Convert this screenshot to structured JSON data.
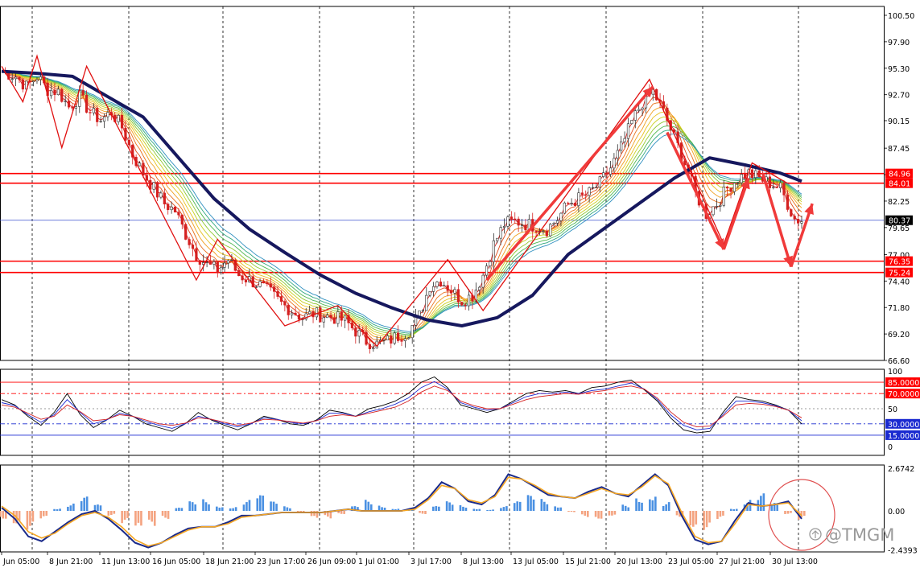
{
  "watermark": "@TMGM",
  "colors": {
    "bull": "#2e2e2e",
    "bear": "#d42020",
    "ema_main": "#16185e",
    "hline": "#ff0000",
    "current_line": "#3a4fcf",
    "grid": "#000000",
    "hist_pos": "#4a90e2",
    "hist_neg": "#f4a380",
    "macd_line": "#1a2a8a",
    "signal_line": "#f5a623",
    "stoch_k": "#000000",
    "stoch_d": "#1a2ad0",
    "stoch_s": "#d42020"
  },
  "chart_data": [
    {
      "type": "candlestick",
      "title": "",
      "y_ticks": [
        "100.50",
        "97.90",
        "95.30",
        "92.70",
        "90.15",
        "87.45",
        "84.85",
        "82.25",
        "79.65",
        "77.00",
        "74.40",
        "71.80",
        "69.20",
        "66.60"
      ],
      "ylim": [
        66.6,
        100.5
      ],
      "price_labels": [
        {
          "label": "84.96",
          "value": 84.96,
          "color": "#ff0000"
        },
        {
          "label": "84.01",
          "value": 84.01,
          "color": "#ff0000"
        },
        {
          "label": "80.37",
          "value": 80.37,
          "color": "#000000"
        },
        {
          "label": "76.35",
          "value": 76.35,
          "color": "#ff0000"
        },
        {
          "label": "75.24",
          "value": 75.24,
          "color": "#ff0000"
        }
      ],
      "close_path": [
        [
          0,
          95.0
        ],
        [
          4,
          94.5
        ],
        [
          7,
          93.5
        ],
        [
          10,
          94.5
        ],
        [
          13,
          93.2
        ],
        [
          16,
          93.0
        ],
        [
          19,
          91.5
        ],
        [
          22,
          92.5
        ],
        [
          25,
          91.0
        ],
        [
          28,
          90.2
        ],
        [
          31,
          91.0
        ],
        [
          34,
          89.5
        ],
        [
          37,
          86.8
        ],
        [
          40,
          85.0
        ],
        [
          43,
          83.5
        ],
        [
          46,
          82.0
        ],
        [
          49,
          81.3
        ],
        [
          52,
          79.0
        ],
        [
          55,
          77.0
        ],
        [
          58,
          76.0
        ],
        [
          61,
          75.5
        ],
        [
          64,
          76.5
        ],
        [
          67,
          75.0
        ],
        [
          70,
          74.5
        ],
        [
          73,
          74.0
        ],
        [
          76,
          73.2
        ],
        [
          79,
          72.2
        ],
        [
          82,
          71.5
        ],
        [
          85,
          70.8
        ],
        [
          88,
          71.2
        ],
        [
          91,
          71.0
        ],
        [
          94,
          70.8
        ],
        [
          97,
          70.5
        ],
        [
          100,
          69.5
        ],
        [
          103,
          68.5
        ],
        [
          106,
          68.2
        ],
        [
          109,
          68.5
        ],
        [
          112,
          69.0
        ],
        [
          115,
          69.5
        ],
        [
          118,
          71.0
        ],
        [
          121,
          74.0
        ],
        [
          124,
          74.5
        ],
        [
          127,
          73.5
        ],
        [
          130,
          72.5
        ],
        [
          133,
          73.0
        ],
        [
          136,
          75.0
        ],
        [
          139,
          78.0
        ],
        [
          142,
          80.0
        ],
        [
          145,
          80.3
        ],
        [
          148,
          80.0
        ],
        [
          151,
          79.8
        ],
        [
          154,
          79.5
        ],
        [
          157,
          80.5
        ],
        [
          160,
          82.0
        ],
        [
          163,
          82.5
        ],
        [
          166,
          83.0
        ],
        [
          169,
          84.0
        ],
        [
          172,
          85.5
        ],
        [
          175,
          87.5
        ],
        [
          178,
          90.0
        ],
        [
          181,
          92.0
        ],
        [
          184,
          93.0
        ],
        [
          187,
          91.0
        ],
        [
          190,
          88.5
        ],
        [
          193,
          86.0
        ],
        [
          196,
          83.0
        ],
        [
          199,
          81.0
        ],
        [
          202,
          82.0
        ],
        [
          205,
          83.5
        ],
        [
          208,
          84.5
        ],
        [
          211,
          85.0
        ],
        [
          214,
          84.5
        ],
        [
          217,
          84.0
        ],
        [
          220,
          83.5
        ],
        [
          222,
          82.0
        ],
        [
          224,
          80.5
        ],
        [
          226,
          80.37
        ]
      ],
      "ema_path": [
        [
          0,
          95.0
        ],
        [
          10,
          94.8
        ],
        [
          20,
          94.5
        ],
        [
          30,
          92.5
        ],
        [
          40,
          90.5
        ],
        [
          50,
          86.5
        ],
        [
          60,
          82.5
        ],
        [
          70,
          79.5
        ],
        [
          80,
          77.2
        ],
        [
          90,
          75.0
        ],
        [
          100,
          73.2
        ],
        [
          110,
          71.8
        ],
        [
          120,
          70.6
        ],
        [
          130,
          70.0
        ],
        [
          140,
          70.8
        ],
        [
          150,
          73.0
        ],
        [
          160,
          77.0
        ],
        [
          170,
          79.5
        ],
        [
          180,
          82.0
        ],
        [
          190,
          84.5
        ],
        [
          200,
          86.5
        ],
        [
          210,
          85.8
        ],
        [
          220,
          85.0
        ],
        [
          226,
          84.2
        ]
      ],
      "zigzag": [
        [
          0,
          95.5
        ],
        [
          6,
          92.0
        ],
        [
          10,
          96.5
        ],
        [
          17,
          87.5
        ],
        [
          24,
          95.5
        ],
        [
          55,
          74.5
        ],
        [
          61,
          78.5
        ],
        [
          80,
          70.0
        ],
        [
          95,
          72.0
        ],
        [
          106,
          68.0
        ],
        [
          126,
          76.5
        ],
        [
          136,
          71.5
        ],
        [
          183,
          94.2
        ],
        [
          204,
          78.0
        ],
        [
          212,
          86.0
        ],
        [
          222,
          84.0
        ]
      ],
      "arrows": [
        {
          "from": [
            137,
            74.5
          ],
          "to": [
            184,
            93.5
          ]
        },
        {
          "from": [
            188,
            89.0
          ],
          "to": [
            204,
            77.5
          ]
        },
        {
          "from": [
            204,
            77.5
          ],
          "to": [
            211,
            84.5
          ]
        },
        {
          "from": [
            215,
            85.0
          ],
          "to": [
            223,
            75.8
          ]
        },
        {
          "from": [
            223,
            75.8
          ],
          "to": [
            229,
            82.0
          ]
        }
      ]
    },
    {
      "type": "line",
      "title": "",
      "levels": [
        {
          "label": "85.0000",
          "value": 85,
          "color": "#ff0000"
        },
        {
          "label": "70.0000",
          "value": 70,
          "color": "#ff0000"
        },
        {
          "label": "30.0000",
          "value": 30,
          "color": "#1a2ad0"
        },
        {
          "label": "15.0000",
          "value": 15,
          "color": "#1a2ad0"
        }
      ],
      "y_ticks": [
        "100",
        "50",
        "0"
      ],
      "ylim": [
        0,
        100
      ],
      "series": [
        {
          "values": [
            62,
            55,
            40,
            28,
            45,
            70,
            42,
            25,
            35,
            48,
            40,
            30,
            25,
            20,
            30,
            45,
            35,
            28,
            22,
            30,
            40,
            36,
            30,
            28,
            35,
            48,
            45,
            40,
            50,
            54,
            60,
            70,
            85,
            92,
            78,
            55,
            50,
            45,
            50,
            60,
            70,
            74,
            72,
            74,
            70,
            78,
            80,
            85,
            88,
            75,
            60,
            38,
            22,
            18,
            20,
            45,
            66,
            62,
            60,
            55,
            48,
            30
          ]
        },
        {
          "values": [
            58,
            54,
            42,
            32,
            42,
            62,
            45,
            30,
            35,
            44,
            40,
            33,
            28,
            24,
            30,
            40,
            36,
            30,
            26,
            30,
            38,
            36,
            32,
            30,
            34,
            44,
            44,
            40,
            46,
            50,
            56,
            64,
            78,
            86,
            76,
            58,
            52,
            48,
            50,
            58,
            66,
            70,
            70,
            72,
            70,
            74,
            76,
            80,
            84,
            76,
            62,
            42,
            28,
            22,
            24,
            42,
            60,
            60,
            58,
            54,
            48,
            34
          ]
        },
        {
          "values": [
            55,
            52,
            44,
            36,
            40,
            55,
            46,
            34,
            36,
            42,
            40,
            35,
            30,
            28,
            31,
            38,
            36,
            32,
            28,
            31,
            36,
            35,
            33,
            31,
            34,
            40,
            42,
            40,
            44,
            48,
            52,
            60,
            72,
            80,
            74,
            60,
            54,
            50,
            50,
            56,
            62,
            66,
            68,
            70,
            69,
            72,
            74,
            78,
            80,
            76,
            64,
            46,
            32,
            26,
            27,
            40,
            55,
            57,
            56,
            53,
            48,
            38
          ]
        }
      ]
    },
    {
      "type": "bar",
      "title": "",
      "y_ticks": [
        "2.6742",
        "0.00",
        "-2.4393"
      ],
      "ylim": [
        -2.4393,
        2.6742
      ],
      "histogram": [
        -0.5,
        -0.8,
        -1.2,
        -0.6,
        0.2,
        0.5,
        0.9,
        0.4,
        -0.3,
        -0.9,
        -1.5,
        -1.1,
        -0.5,
        0.2,
        0.6,
        0.8,
        0.4,
        0.3,
        0.7,
        1.0,
        0.6,
        0.3,
        -0.2,
        -0.6,
        -0.5,
        -0.2,
        0.3,
        0.7,
        0.4,
        0.2,
        0.1,
        -0.2,
        0.3,
        0.6,
        0.4,
        0.2,
        0.1,
        0.3,
        0.6,
        1.0,
        0.8,
        0.4,
        -0.1,
        -0.4,
        -0.5,
        -0.3,
        0.4,
        1.0,
        1.3,
        0.6,
        -0.4,
        -1.0,
        -1.2,
        -0.6,
        0.2,
        0.8,
        1.1,
        0.5,
        -0.2,
        -0.6
      ],
      "series": [
        {
          "values": [
            0.2,
            -0.5,
            -1.6,
            -1.9,
            -1.3,
            -0.7,
            -0.2,
            0.0,
            -0.5,
            -1.2,
            -2.0,
            -2.3,
            -2.0,
            -1.5,
            -1.1,
            -1.0,
            -1.0,
            -0.7,
            -0.3,
            -0.3,
            -0.2,
            -0.1,
            -0.1,
            -0.1,
            -0.1,
            0.0,
            0.1,
            0.0,
            0.0,
            0.0,
            0.0,
            0.2,
            0.8,
            1.8,
            1.4,
            0.6,
            0.4,
            1.0,
            2.3,
            2.0,
            1.5,
            1.0,
            0.9,
            0.8,
            1.2,
            1.5,
            1.1,
            0.9,
            1.6,
            2.3,
            1.6,
            -0.3,
            -1.8,
            -2.1,
            -1.9,
            -0.6,
            0.5,
            0.3,
            0.4,
            0.6,
            -0.5
          ]
        },
        {
          "values": [
            0.3,
            -0.3,
            -1.3,
            -1.7,
            -1.4,
            -0.8,
            -0.3,
            -0.1,
            -0.4,
            -1.0,
            -1.8,
            -2.2,
            -2.0,
            -1.6,
            -1.2,
            -1.0,
            -1.0,
            -0.8,
            -0.4,
            -0.3,
            -0.2,
            -0.1,
            -0.1,
            -0.1,
            -0.1,
            0.0,
            0.1,
            0.0,
            0.0,
            0.0,
            0.0,
            0.1,
            0.7,
            1.6,
            1.4,
            0.7,
            0.5,
            0.9,
            2.1,
            2.0,
            1.6,
            1.1,
            0.9,
            0.8,
            1.1,
            1.4,
            1.1,
            1.0,
            1.5,
            2.2,
            1.7,
            -0.1,
            -1.6,
            -2.0,
            -1.9,
            -0.8,
            0.4,
            0.3,
            0.4,
            0.5,
            -0.3
          ]
        }
      ]
    }
  ],
  "x_ticks": [
    "Jun 05:00",
    "8 Jun 21:00",
    "11 Jun 13:00",
    "16 Jun 05:00",
    "18 Jun 21:00",
    "23 Jun 17:00",
    "26 Jun 09:00",
    "1 Jul 01:00",
    "3 Jul 17:00",
    "8 Jul 13:00",
    "13 Jul 05:00",
    "15 Jul 21:00",
    "20 Jul 13:00",
    "23 Jul 05:00",
    "27 Jul 21:00",
    "30 Jul 13:00"
  ]
}
